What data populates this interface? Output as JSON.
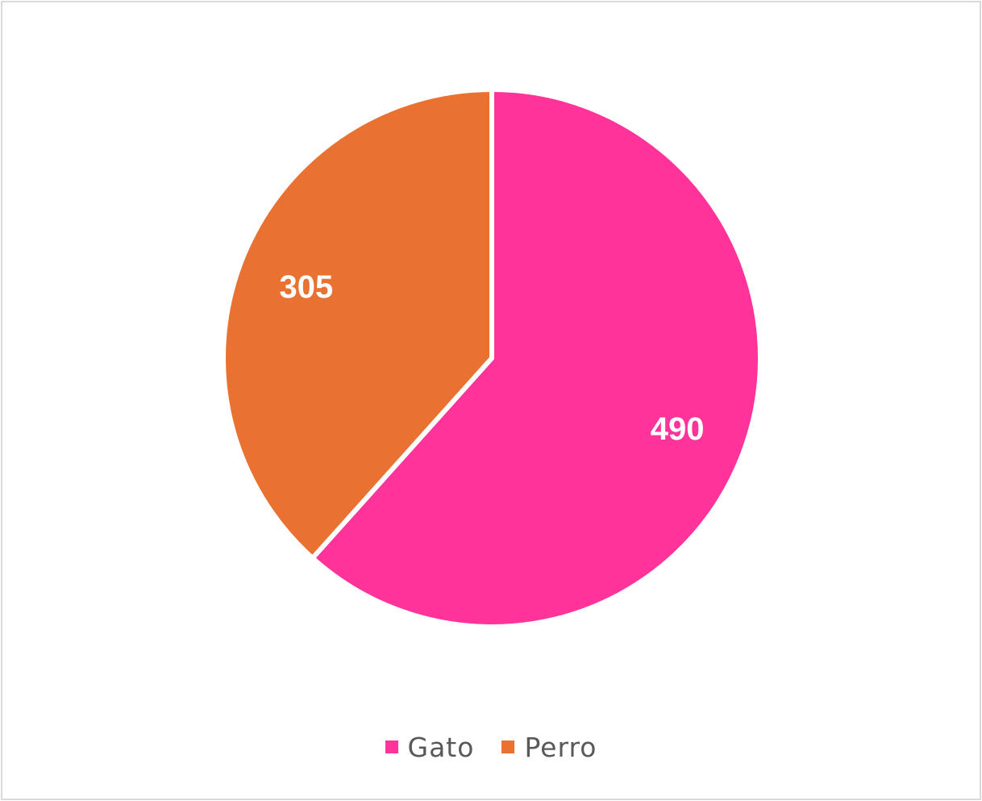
{
  "chart_data": {
    "type": "pie",
    "title": "",
    "categories": [
      "Gato",
      "Perro"
    ],
    "values": [
      490,
      305
    ],
    "colors": [
      "#ff3399",
      "#e97132"
    ],
    "data_labels": [
      "490",
      "305"
    ],
    "start_angle": "12 o'clock, clockwise",
    "legend_position": "bottom"
  },
  "legend": {
    "items": [
      {
        "label": "Gato",
        "color": "#ff3399"
      },
      {
        "label": "Perro",
        "color": "#e97132"
      }
    ]
  }
}
